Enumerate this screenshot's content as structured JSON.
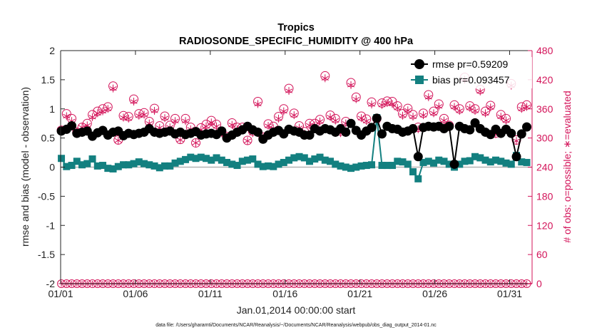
{
  "chart_data": {
    "type": "line",
    "title": "Tropics",
    "subtitle": "RADIOSONDE_SPECIFIC_HUMIDITY @ 400 hPa",
    "xlabel": "Jan.01,2014 00:00:00 start",
    "ylabel_left": "rmse and bias (model - observation)",
    "ylabel_right": "# of obs: o=possible; ∗=evaluated",
    "footnote": "data file: /Users/gharamti/Documents/NCAR/Reanalysis/~/Documents/NCAR/Reanalysis/webpub/obs_diag_output_2014-01.nc",
    "xlim": [
      0,
      31.5
    ],
    "ylim_left": [
      -2,
      2
    ],
    "ylim_right": [
      0,
      480
    ],
    "x_ticks": [
      0,
      5,
      10,
      15,
      20,
      25,
      30
    ],
    "x_tick_labels": [
      "01/01",
      "01/06",
      "01/11",
      "01/16",
      "01/21",
      "01/26",
      "01/31"
    ],
    "y_ticks_left": [
      -2,
      -1.5,
      -1,
      -0.5,
      0,
      0.5,
      1,
      1.5,
      2
    ],
    "y_tick_labels_left": [
      "-2",
      "-1.5",
      "-1",
      "-0.5",
      "0",
      "0.5",
      "1",
      "1.5",
      "2"
    ],
    "y_ticks_right": [
      0,
      60,
      120,
      180,
      240,
      300,
      360,
      420,
      480
    ],
    "y_tick_labels_right": [
      "0",
      "60",
      "120",
      "180",
      "240",
      "300",
      "360",
      "420",
      "480"
    ],
    "legend": {
      "position": "top-right",
      "entries": [
        "rmse pr=0.59209",
        "bias pr=0.093457"
      ]
    },
    "colors": {
      "rmse": "#000000",
      "bias": "#138080",
      "obs": "#d31359",
      "zero_line": "#b4b4b4"
    },
    "series": [
      {
        "name": "rmse",
        "axis": "left",
        "values": [
          0.62,
          0.65,
          0.71,
          0.58,
          0.6,
          0.62,
          0.53,
          0.59,
          0.63,
          0.55,
          0.6,
          0.62,
          0.54,
          0.58,
          0.56,
          0.58,
          0.6,
          0.66,
          0.6,
          0.58,
          0.6,
          0.62,
          0.57,
          0.6,
          0.56,
          0.58,
          0.61,
          0.55,
          0.57,
          0.58,
          0.56,
          0.62,
          0.5,
          0.55,
          0.6,
          0.64,
          0.7,
          0.64,
          0.6,
          0.48,
          0.55,
          0.6,
          0.63,
          0.57,
          0.65,
          0.62,
          0.6,
          0.55,
          0.55,
          0.66,
          0.62,
          0.66,
          0.64,
          0.6,
          0.66,
          0.6,
          0.75,
          0.63,
          0.55,
          0.62,
          0.68,
          0.84,
          0.57,
          0.7,
          0.66,
          0.65,
          0.6,
          0.62,
          0.66,
          0.18,
          0.68,
          0.7,
          0.69,
          0.7,
          0.66,
          0.7,
          0.05,
          0.7,
          0.66,
          0.64,
          0.76,
          0.66,
          0.6,
          0.56,
          0.65,
          0.58,
          0.65,
          0.58,
          0.18,
          0.57,
          0.69
        ]
      },
      {
        "name": "bias",
        "axis": "left",
        "values": [
          0.15,
          0.01,
          0.03,
          0.1,
          0.04,
          0.06,
          0.14,
          0.02,
          0.03,
          -0.02,
          -0.03,
          0.01,
          0.04,
          0.04,
          0.06,
          0.09,
          0.06,
          0.04,
          0.02,
          -0.01,
          0.02,
          0.02,
          0.07,
          0.1,
          0.13,
          0.17,
          0.15,
          0.17,
          0.15,
          0.12,
          0.16,
          0.12,
          0.08,
          0.05,
          0.03,
          0.1,
          0.12,
          0.14,
          0.05,
          0.01,
          0.02,
          0.01,
          0.05,
          0.08,
          0.12,
          0.16,
          0.18,
          0.16,
          0.1,
          0.14,
          0.17,
          0.12,
          0.1,
          0.05,
          0.02,
          0.0,
          -0.02,
          0.0,
          0.02,
          0.03,
          0.04,
          0.85,
          0.03,
          0.03,
          0.03,
          0.1,
          0.09,
          0.05,
          -0.08,
          -0.2,
          0.08,
          0.1,
          0.07,
          0.12,
          0.1,
          0.05,
          0.0,
          0.05,
          0.1,
          0.11,
          0.18,
          0.16,
          0.12,
          0.09,
          0.12,
          0.1,
          0.07,
          0.05,
          0.2,
          0.09,
          0.08
        ]
      },
      {
        "name": "obs possible",
        "axis": "right",
        "values": [
          316,
          350,
          340,
          312,
          322,
          330,
          348,
          355,
          360,
          364,
          407,
          296,
          346,
          344,
          380,
          350,
          352,
          334,
          361,
          325,
          345,
          326,
          340,
          297,
          340,
          322,
          290,
          321,
          328,
          336,
          328,
          314,
          303,
          331,
          322,
          322,
          295,
          314,
          375,
          302,
          329,
          324,
          344,
          360,
          402,
          351,
          325,
          313,
          330,
          330,
          338,
          428,
          347,
          340,
          314,
          334,
          414,
          384,
          345,
          339,
          374,
          340,
          372,
          376,
          375,
          366,
          350,
          361,
          348,
          322,
          351,
          389,
          355,
          370,
          340,
          326,
          368,
          360,
          425,
          366,
          360,
          400,
          355,
          367,
          310,
          348,
          340,
          412,
          296,
          364,
          368
        ]
      },
      {
        "name": "obs evaluated",
        "axis": "right",
        "values": [
          316,
          345,
          335,
          312,
          322,
          326,
          343,
          351,
          355,
          360,
          402,
          295,
          342,
          340,
          375,
          346,
          348,
          330,
          356,
          321,
          341,
          322,
          335,
          296,
          335,
          318,
          290,
          317,
          324,
          332,
          324,
          310,
          302,
          327,
          318,
          318,
          294,
          310,
          370,
          301,
          325,
          320,
          340,
          355,
          397,
          347,
          321,
          309,
          326,
          326,
          334,
          423,
          343,
          336,
          310,
          330,
          409,
          380,
          341,
          335,
          369,
          336,
          368,
          372,
          370,
          362,
          346,
          357,
          344,
          318,
          347,
          384,
          351,
          365,
          336,
          322,
          364,
          356,
          420,
          362,
          356,
          396,
          351,
          363,
          308,
          344,
          336,
          408,
          294,
          360,
          364
        ]
      }
    ]
  }
}
